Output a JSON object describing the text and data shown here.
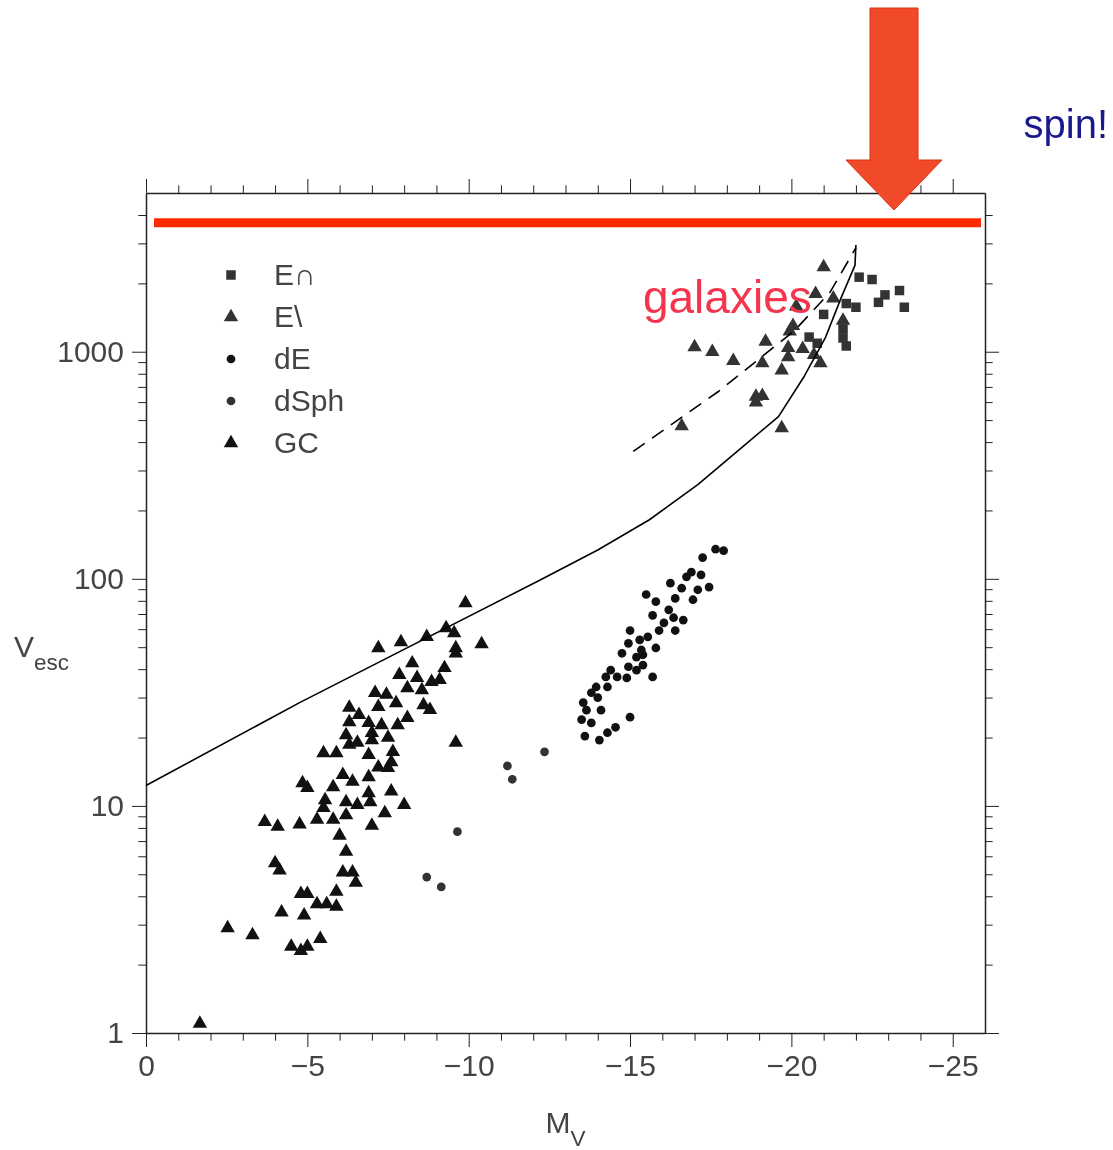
{
  "chart_data": {
    "type": "scatter",
    "xlabel": "M$_{V}$",
    "ylabel": "V$_{esc}$",
    "log": "y",
    "legend": "top left",
    "xlim": [
      0,
      -26
    ],
    "ylim": [
      1,
      5000
    ],
    "xticks": [
      0,
      {
        "value": -1,
        "label": null
      },
      {
        "value": -2,
        "label": null
      },
      {
        "value": -3,
        "label": null
      },
      {
        "value": -4,
        "label": null
      },
      -5,
      {
        "value": -6,
        "label": null
      },
      {
        "value": -7,
        "label": null
      },
      {
        "value": -8,
        "label": null
      },
      {
        "value": -9,
        "label": null
      },
      -10,
      {
        "value": -11,
        "label": null
      },
      {
        "value": -12,
        "label": null
      },
      {
        "value": -13,
        "label": null
      },
      {
        "value": -14,
        "label": null
      },
      -15,
      {
        "value": -16,
        "label": null
      },
      {
        "value": -17,
        "label": null
      },
      {
        "value": -18,
        "label": null
      },
      {
        "value": -19,
        "label": null
      },
      -20,
      {
        "value": -21,
        "label": null
      },
      {
        "value": -22,
        "label": null
      },
      {
        "value": -23,
        "label": null
      },
      {
        "value": -24,
        "label": null
      },
      -25
    ],
    "yticks": [
      1,
      {
        "value": 2,
        "label": null
      },
      {
        "value": 3,
        "label": null
      },
      {
        "value": 4,
        "label": null
      },
      {
        "value": 5,
        "label": null
      },
      {
        "value": 6,
        "label": null
      },
      {
        "value": 7,
        "label": null
      },
      {
        "value": 8,
        "label": null
      },
      {
        "value": 9,
        "label": null
      },
      10,
      {
        "value": 20,
        "label": null
      },
      {
        "value": 30,
        "label": null
      },
      {
        "value": 40,
        "label": null
      },
      {
        "value": 50,
        "label": null
      },
      {
        "value": 60,
        "label": null
      },
      {
        "value": 70,
        "label": null
      },
      {
        "value": 80,
        "label": null
      },
      {
        "value": 90,
        "label": null
      },
      100,
      {
        "value": 200,
        "label": null
      },
      {
        "value": 300,
        "label": null
      },
      {
        "value": 400,
        "label": null
      },
      {
        "value": 500,
        "label": null
      },
      {
        "value": 600,
        "label": null
      },
      {
        "value": 700,
        "label": null
      },
      {
        "value": 800,
        "label": null
      },
      {
        "value": 900,
        "label": null
      },
      1000,
      {
        "value": 2000,
        "label": null
      },
      {
        "value": 3000,
        "label": null
      },
      {
        "value": 4000,
        "label": null
      }
    ],
    "ref_lines": [
      {
        "axis": "y",
        "value": 3700,
        "color": "#ff2a00"
      }
    ],
    "annotations": [
      "galaxies",
      "spin!"
    ],
    "series": [
      {
        "name": "E∩",
        "color": "#333333",
        "marker": "square",
        "x": [
          -22.1,
          -22.5,
          -23.35,
          -22.9,
          -22.7,
          -23.5,
          -22.0,
          -21.7,
          -21.0,
          -20.55,
          -20.8,
          -21.6,
          -21.7,
          -21.6
        ],
        "values": [
          2130,
          2080,
          1860,
          1780,
          1650,
          1570,
          1570,
          1630,
          1460,
          1160,
          1090,
          1260,
          1060,
          1150
        ]
      },
      {
        "name": "E\\",
        "color": "#333333",
        "marker": "triangle",
        "x": [
          -16.6,
          -17.0,
          -17.55,
          -18.2,
          -19.2,
          -19.1,
          -18.9,
          -19.1,
          -18.9,
          -19.7,
          -19.9,
          -20.05,
          -19.95,
          -19.9,
          -20.35,
          -20.15,
          -20.75,
          -21.3,
          -21.0,
          -20.7,
          -20.9,
          -21.6,
          -19.7
        ],
        "values": [
          471,
          1048,
          1000,
          912,
          1108,
          891,
          634,
          640,
          598,
          829,
          946,
          1300,
          1230,
          1040,
          1030,
          1583,
          1800,
          1720,
          2360,
          970,
          891,
          1370,
          461
        ]
      },
      {
        "name": "dE",
        "color": "#111111",
        "marker": "circle",
        "x": [
          -13.6,
          -14.05,
          -14.3,
          -14.55,
          -15.0,
          -13.8,
          -13.5,
          -13.55,
          -13.8,
          -14.0,
          -14.3,
          -14.6,
          -14.25,
          -14.9,
          -14.95,
          -15.2,
          -15.7,
          -15.4,
          -15.4,
          -14.95,
          -15.0,
          -15.3,
          -15.55,
          -15.8,
          -15.9,
          -15.7,
          -16.05,
          -16.2,
          -16.4,
          -16.35,
          -16.65,
          -15.8,
          -15.5,
          -16.25,
          -16.4,
          -16.6,
          -16.75,
          -16.9,
          -16.95,
          -17.1,
          -17.2,
          -17.45,
          -17.25,
          -17.65,
          -17.9,
          -15.2,
          -14.75,
          -14.4,
          -13.95,
          -13.65,
          -14.1,
          -15.35
        ],
        "values": [
          20.3,
          19.5,
          21,
          22.2,
          24.6,
          23.2,
          24,
          28.5,
          31.5,
          30,
          33.4,
          37,
          37,
          36.6,
          41,
          39.6,
          37,
          41.7,
          46.3,
          52,
          59.2,
          53.8,
          55.5,
          49.6,
          59.2,
          69,
          64,
          73,
          59.2,
          67.4,
          65.8,
          79.3,
          85.3,
          95.7,
          82,
          90.9,
          102,
          107,
          80.9,
          89.5,
          104,
          92,
          124,
          135,
          133,
          45.2,
          47,
          39.6,
          33.4,
          26.4,
          26.4,
          48.6
        ]
      },
      {
        "name": "dSph",
        "color": "#333333",
        "marker": "circle",
        "x": [
          -8.7,
          -9.15,
          -9.65,
          -11.2,
          -11.35,
          -12.35
        ],
        "values": [
          4.86,
          4.4,
          7.7,
          15.0,
          13.1,
          17.3
        ]
      },
      {
        "name": "GC",
        "color": "#111111",
        "marker": "triangle",
        "x": [
          -1.67,
          -2.53,
          -3.3,
          -3.68,
          -4.08,
          -4.76,
          -4.0,
          -4.14,
          -4.2,
          -4.5,
          -4.8,
          -5.0,
          -5.4,
          -4.8,
          -5.0,
          -4.9,
          -5.3,
          -5.6,
          -5.9,
          -5.9,
          -6.1,
          -6.4,
          -6.5,
          -6.2,
          -6.0,
          -5.3,
          -5.8,
          -6.2,
          -7.0,
          -7.4,
          -8.0,
          -7.6,
          -6.95,
          -6.55,
          -6.2,
          -5.5,
          -5.55,
          -4.85,
          -5.0,
          -5.8,
          -6.1,
          -6.4,
          -6.9,
          -6.9,
          -7.2,
          -7.5,
          -6.9,
          -5.5,
          -5.9,
          -6.3,
          -6.55,
          -6.2,
          -7.0,
          -7.5,
          -7.65,
          -7.6,
          -7.0,
          -6.3,
          -6.6,
          -6.3,
          -6.9,
          -7.3,
          -7.2,
          -7.8,
          -8.1,
          -7.75,
          -7.1,
          -7.45,
          -8.1,
          -7.85,
          -8.25,
          -8.4,
          -8.55,
          -8.6,
          -8.8,
          -8.85,
          -9.1,
          -9.25,
          -9.6,
          -9.6,
          -9.6,
          -7.2,
          -7.9,
          -8.7,
          -9.3,
          -9.55,
          -9.9,
          -10.4
        ],
        "values": [
          1.1,
          2.9,
          2.7,
          8.5,
          8.1,
          8.3,
          5.6,
          5.2,
          3.4,
          2.4,
          2.3,
          2.4,
          2.6,
          4.1,
          4.1,
          3.3,
          3.7,
          3.7,
          3.6,
          4.2,
          5.1,
          5.1,
          4.6,
          6.3,
          7.4,
          8.7,
          8.7,
          9.1,
          8.2,
          9.3,
          10.1,
          11.6,
          10.4,
          10.1,
          10.4,
          9.8,
          10.6,
          12.6,
          12.0,
          12.1,
          13.7,
          12.8,
          13.4,
          11.4,
          14.8,
          14.7,
          16.8,
          17.1,
          17.1,
          18.6,
          19,
          20.5,
          21,
          20,
          17.3,
          15.6,
          19.5,
          23.4,
          25.2,
          27.1,
          23.2,
          22.7,
          27.3,
          22.7,
          24.4,
          28.4,
          31.5,
          30.9,
          33,
          37.8,
          42.5,
          36.6,
          32.4,
          27.8,
          26.5,
          35.2,
          35.9,
          40.5,
          47,
          49.6,
          19,
          49.6,
          52.7,
          55.5,
          60.7,
          57.7,
          78.2,
          51.6
        ]
      },
      {
        "type": "line",
        "color": "#000000",
        "line_style": "solid",
        "x": [
          0,
          -4.76,
          -12.2,
          -14,
          -15.6,
          -17.1,
          -18.45,
          -19.6,
          -20.4,
          -21.05,
          -21.55,
          -21.97,
          -22.0
        ],
        "values": [
          12.3,
          28.5,
          98.6,
          134,
          182,
          260,
          377,
          518,
          780,
          1150,
          1740,
          2400,
          2950
        ]
      },
      {
        "type": "line",
        "color": "#000000",
        "line_style": "dashed",
        "x": [
          -15.1,
          -17.75,
          -20.1,
          -21.2,
          -22.0
        ],
        "values": [
          364,
          670,
          1240,
          1830,
          2870
        ]
      }
    ]
  }
}
